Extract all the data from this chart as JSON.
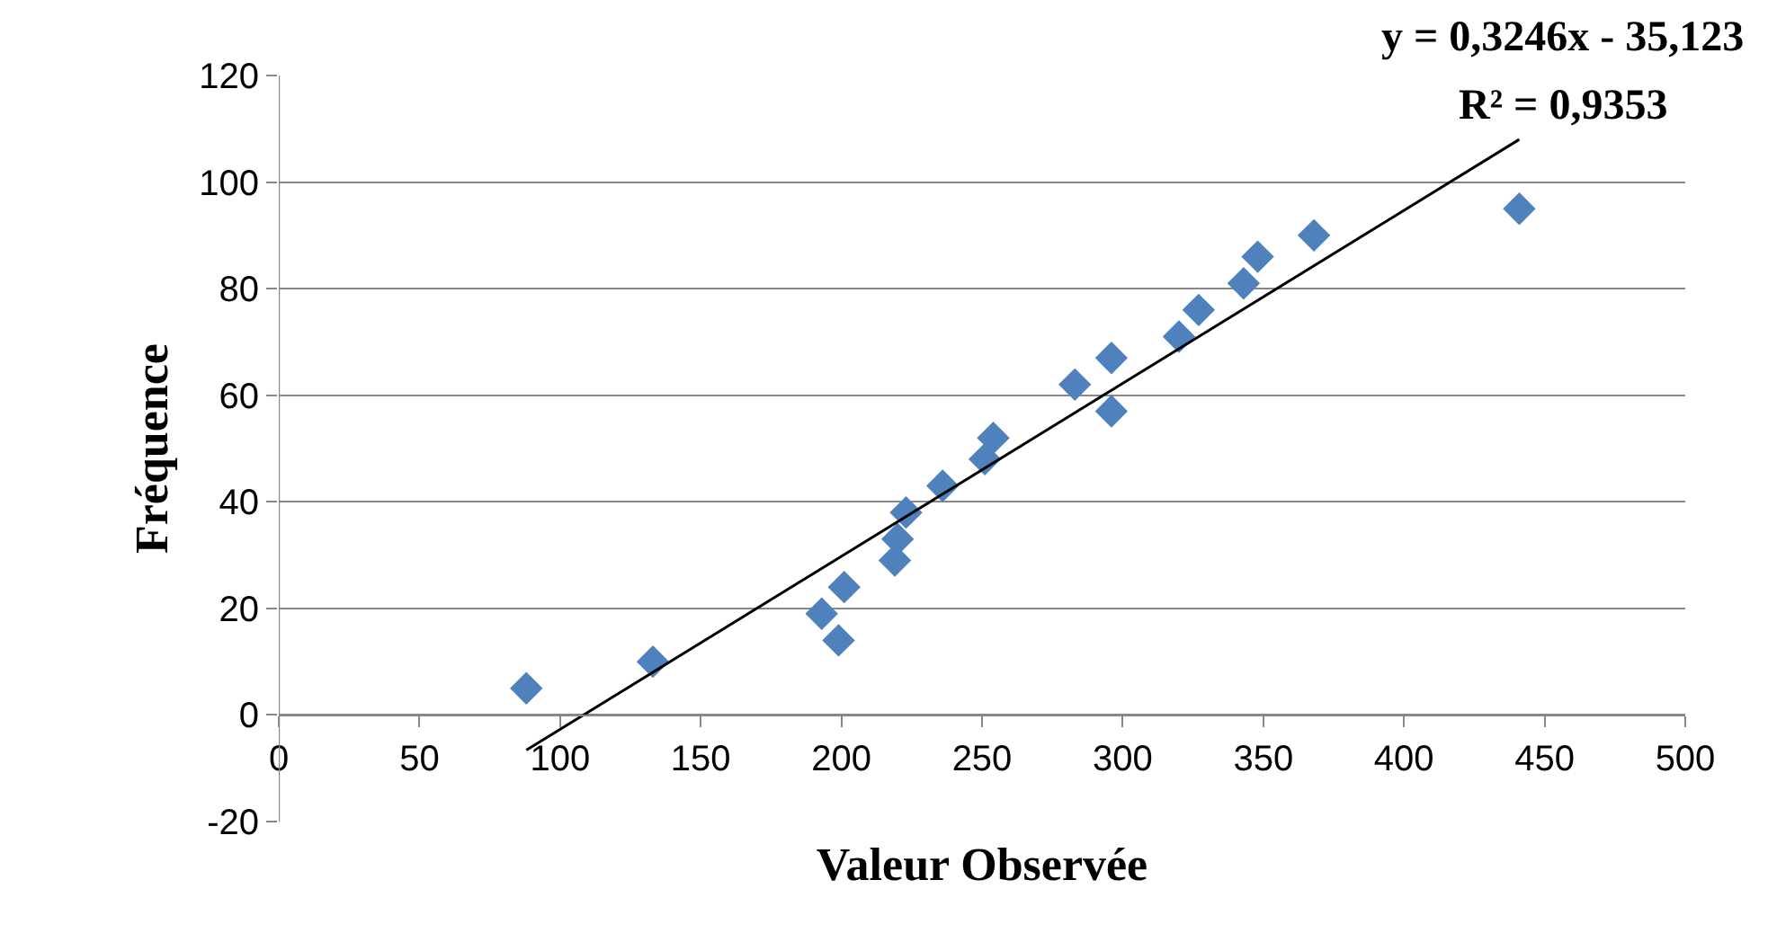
{
  "chart_data": {
    "type": "scatter",
    "xlabel": "Valeur Observée",
    "ylabel": "Fréquence",
    "marker": "diamond",
    "grid": "y",
    "annotations": [
      "y = 0,3246x - 35,123",
      "R² = 0,9353"
    ],
    "xlim": [
      0,
      500
    ],
    "xticks": [
      0,
      50,
      100,
      150,
      200,
      250,
      300,
      350,
      400,
      450,
      500
    ],
    "ylim": [
      -20,
      120
    ],
    "yticks": [
      -20,
      0,
      20,
      40,
      60,
      80,
      100,
      120
    ],
    "series": [
      {
        "color": "#4f81bd",
        "x": [
          88,
          133,
          193,
          199,
          201,
          219,
          220,
          223,
          236,
          251,
          254,
          283,
          296,
          296,
          320,
          327,
          343,
          348,
          368,
          441
        ],
        "values": [
          5,
          10,
          19,
          14,
          24,
          29,
          33,
          38,
          43,
          48,
          52,
          62,
          67,
          57,
          71,
          76,
          81,
          86,
          90,
          95
        ]
      },
      {
        "type": "line",
        "marker": "none",
        "color": "#000000",
        "x": [
          88,
          441
        ],
        "values": [
          -6.6,
          108.0
        ]
      }
    ]
  }
}
